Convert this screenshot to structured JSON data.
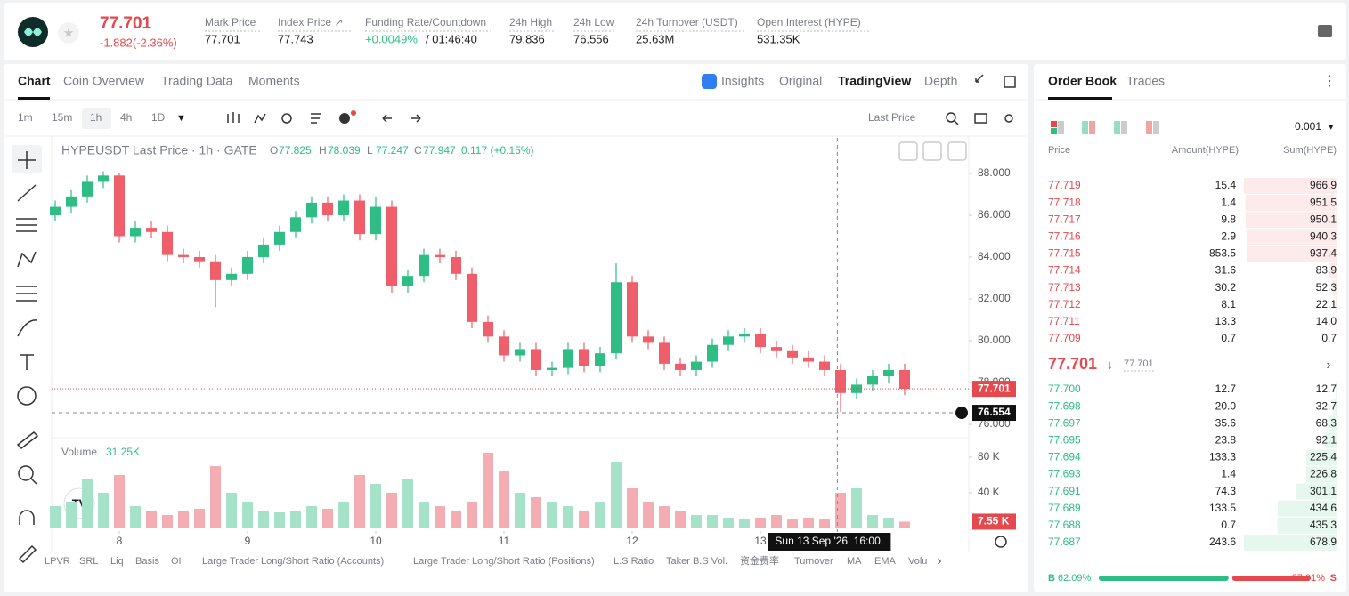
{
  "header": {
    "price": "77.701",
    "change": "-1.882(-2.36%)",
    "stats": [
      {
        "label": "Mark Price",
        "value": "77.701"
      },
      {
        "label": "Index Price ↗",
        "value": "77.743"
      },
      {
        "label": "Funding Rate/Countdown",
        "value": "+0.0049%",
        "extra": "/ 01:46:40"
      },
      {
        "label": "24h High",
        "value": "79.836"
      },
      {
        "label": "24h Low",
        "value": "76.556"
      },
      {
        "label": "24h Turnover (USDT)",
        "value": "25.63M"
      },
      {
        "label": "Open Interest (HYPE)",
        "value": "531.35K"
      }
    ]
  },
  "tabs": [
    "Chart",
    "Coin Overview",
    "Trading Data",
    "Moments"
  ],
  "views": [
    "Insights",
    "Original",
    "TradingView",
    "Depth"
  ],
  "intervals": [
    "1m",
    "15m",
    "1h",
    "4h",
    "1D"
  ],
  "price_type": "Last Price",
  "indicators": [
    "LPVR",
    "SRL",
    "Liq",
    "Basis",
    "OI",
    "Large Trader Long/Short Ratio (Accounts)",
    "Large Trader Long/Short Ratio (Positions)",
    "L.S Ratio",
    "Taker B.S Vol.",
    "资金费率",
    "Turnover",
    "MA",
    "EMA",
    "Volu"
  ],
  "chart_data": {
    "type": "candlestick",
    "title": "HYPEUSDT Last Price · 1h · GATE",
    "legend": [
      {
        "key": "O",
        "value": "77.825"
      },
      {
        "key": "H",
        "value": "78.039"
      },
      {
        "key": "L",
        "value": "77.247"
      },
      {
        "key": "C",
        "value": "77.947"
      }
    ],
    "legend_change": "0.117 (+0.15%)",
    "open": [
      86.0,
      86.4,
      86.9,
      87.6,
      87.9,
      85.0,
      85.4,
      85.2,
      84.1,
      84.0,
      83.8,
      82.9,
      83.2,
      84.0,
      84.6,
      85.2,
      85.9,
      86.6,
      86.0,
      86.7,
      85.1,
      86.4,
      82.6,
      83.1,
      84.1,
      84.0,
      83.2,
      80.9,
      80.2,
      79.3,
      79.6,
      78.6,
      78.7,
      79.6,
      78.8,
      79.4,
      82.8,
      80.2,
      79.9,
      78.9,
      78.6,
      79.0,
      79.8,
      80.2,
      80.3,
      79.7,
      79.5,
      79.2,
      79.0,
      78.6,
      77.5,
      77.9,
      78.3,
      78.6
    ],
    "high": [
      86.7,
      87.2,
      87.9,
      88.1,
      88.0,
      85.7,
      85.7,
      85.5,
      84.4,
      84.3,
      84.1,
      83.5,
      84.3,
      84.9,
      85.5,
      86.2,
      86.9,
      86.9,
      87.0,
      87.0,
      86.9,
      86.7,
      83.4,
      84.4,
      84.4,
      84.3,
      83.5,
      81.2,
      80.5,
      79.9,
      79.9,
      79.0,
      79.9,
      79.9,
      79.7,
      83.7,
      83.1,
      80.5,
      80.2,
      79.2,
      79.3,
      80.1,
      80.5,
      80.6,
      80.6,
      80.0,
      79.8,
      79.5,
      79.3,
      78.9,
      78.2,
      78.6,
      78.9,
      78.9
    ],
    "low": [
      85.7,
      86.1,
      86.6,
      87.3,
      84.7,
      84.7,
      84.9,
      83.8,
      83.7,
      83.5,
      81.6,
      82.6,
      82.9,
      83.7,
      84.3,
      84.9,
      85.6,
      85.7,
      85.7,
      84.8,
      84.8,
      82.3,
      82.3,
      82.8,
      83.7,
      82.9,
      80.6,
      79.9,
      79.0,
      79.0,
      78.3,
      78.3,
      78.4,
      78.5,
      78.5,
      79.1,
      79.9,
      79.6,
      78.6,
      78.3,
      78.3,
      78.7,
      79.5,
      79.9,
      79.4,
      79.2,
      78.9,
      78.7,
      78.3,
      76.6,
      77.2,
      77.6,
      78.0,
      77.4
    ],
    "close": [
      86.4,
      86.9,
      87.6,
      87.9,
      85.0,
      85.4,
      85.2,
      84.1,
      84.0,
      83.8,
      82.9,
      83.2,
      84.0,
      84.6,
      85.2,
      85.9,
      86.6,
      86.0,
      86.7,
      85.1,
      86.4,
      82.6,
      83.1,
      84.1,
      84.0,
      83.2,
      80.9,
      80.2,
      79.3,
      79.6,
      78.6,
      78.7,
      79.6,
      78.8,
      79.4,
      82.8,
      80.2,
      79.9,
      78.9,
      78.6,
      79.0,
      79.8,
      80.2,
      80.3,
      79.7,
      79.5,
      79.2,
      79.0,
      78.6,
      77.5,
      77.9,
      78.3,
      78.6,
      77.7
    ],
    "volume": [
      25,
      30,
      55,
      40,
      60,
      25,
      20,
      15,
      20,
      22,
      70,
      40,
      30,
      20,
      18,
      20,
      25,
      22,
      30,
      60,
      50,
      40,
      55,
      30,
      25,
      20,
      30,
      85,
      65,
      40,
      35,
      30,
      25,
      20,
      30,
      75,
      45,
      30,
      25,
      20,
      15,
      15,
      12,
      10,
      12,
      15,
      10,
      12,
      10,
      40,
      45,
      15,
      12,
      7.55
    ],
    "volume_title": "Volume",
    "volume_value": "31.25K",
    "volume_last_label": "7.55 K",
    "ylim": [
      75.45,
      89.7
    ],
    "yticks": [
      {
        "value": 76,
        "label": "76.000"
      },
      {
        "value": 78,
        "label": "78.000"
      },
      {
        "value": 80,
        "label": "80.000"
      },
      {
        "value": 82,
        "label": "82.000"
      },
      {
        "value": 84,
        "label": "84.000"
      },
      {
        "value": 86,
        "label": "86.000"
      },
      {
        "value": 88,
        "label": "88.000"
      }
    ],
    "vlim": [
      0,
      99
    ],
    "vticks": [
      {
        "value": 40,
        "label": "40 K"
      },
      {
        "value": 80,
        "label": "80 K"
      }
    ],
    "xlim": [
      -0.5,
      56.5
    ],
    "xticks": [
      {
        "value": 4,
        "label": "8"
      },
      {
        "value": 12,
        "label": "9"
      },
      {
        "value": 20,
        "label": "10"
      },
      {
        "value": 28,
        "label": "11"
      },
      {
        "value": 36,
        "label": "12"
      },
      {
        "value": 44,
        "label": "13"
      }
    ],
    "last_price": 77.701,
    "crosshair": {
      "x": 48.8,
      "label": "Sun 13 Sep '26  16:00",
      "price": 76.554
    },
    "colors": {
      "up": "#2ebd85",
      "down": "#ef5f6b",
      "volume_up": "#a6e1c9",
      "volume_down": "#f5adb4"
    }
  },
  "order_book": {
    "tabs": [
      "Order Book",
      "Trades"
    ],
    "precision": "0.001",
    "headers": [
      "Price",
      "Amount(HYPE)",
      "Sum(HYPE)"
    ],
    "asks": [
      [
        "77.719",
        "15.4",
        "966.9"
      ],
      [
        "77.718",
        "1.4",
        "951.5"
      ],
      [
        "77.717",
        "9.8",
        "950.1"
      ],
      [
        "77.716",
        "2.9",
        "940.3"
      ],
      [
        "77.715",
        "853.5",
        "937.4"
      ],
      [
        "77.714",
        "31.6",
        "83.9"
      ],
      [
        "77.713",
        "30.2",
        "52.3"
      ],
      [
        "77.712",
        "8.1",
        "22.1"
      ],
      [
        "77.711",
        "13.3",
        "14.0"
      ],
      [
        "77.709",
        "0.7",
        "0.7"
      ]
    ],
    "mid_price": "77.701",
    "mark_price": "77.701",
    "bids": [
      [
        "77.700",
        "12.7",
        "12.7"
      ],
      [
        "77.698",
        "20.0",
        "32.7"
      ],
      [
        "77.697",
        "35.6",
        "68.3"
      ],
      [
        "77.695",
        "23.8",
        "92.1"
      ],
      [
        "77.694",
        "133.3",
        "225.4"
      ],
      [
        "77.693",
        "1.4",
        "226.8"
      ],
      [
        "77.691",
        "74.3",
        "301.1"
      ],
      [
        "77.689",
        "133.5",
        "434.6"
      ],
      [
        "77.688",
        "0.7",
        "435.3"
      ],
      [
        "77.687",
        "243.6",
        "678.9"
      ]
    ],
    "buy_label": "B",
    "buy": {
      "value": 62.09,
      "label": "62.09%"
    },
    "sell": {
      "value": 37.91,
      "label": "37.91%"
    },
    "sell_label": "S"
  }
}
